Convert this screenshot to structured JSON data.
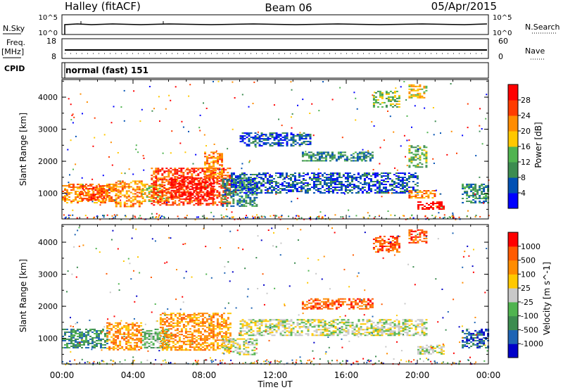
{
  "header": {
    "station": "Halley (fitACF)",
    "beam": "Beam 06",
    "date": "05/Apr/2015"
  },
  "nsky_panel": {
    "left_label": "N.Sky",
    "right_label": "N.Search",
    "left_ticks": [
      "10^5",
      "10^0"
    ],
    "right_ticks": [
      "10^5",
      "10^0"
    ]
  },
  "freq_panel": {
    "left_label_1": "Freq.",
    "left_label_2": "[MHz]",
    "right_label": "Nave",
    "left_ticks": [
      "18",
      "8"
    ],
    "right_ticks": [
      "60",
      "0"
    ]
  },
  "cpid_panel": {
    "label": "CPID",
    "text": "normal (fast) 151"
  },
  "colors": {
    "power": [
      "#0000ff",
      "#0050b4",
      "#3c8c50",
      "#50b450",
      "#ffc800",
      "#ff8c00",
      "#ff3c00",
      "#ff0000"
    ],
    "velocity": [
      "#0000c8",
      "#1e64b4",
      "#3c8c50",
      "#50b450",
      "#c8c8c8",
      "#ffc800",
      "#ff8c00",
      "#ff5a00",
      "#ff0000"
    ],
    "ground_scatter": "#c8c8c8"
  },
  "chart_data": [
    {
      "type": "heatmap",
      "quantity": "Power",
      "xlabel": "",
      "ylabel": "Slant Range [km]",
      "xlim": [
        0,
        24
      ],
      "ylim": [
        200,
        4550
      ],
      "ytick_labels": [
        "1000",
        "2000",
        "3000",
        "4000"
      ],
      "ytick_values": [
        1000,
        2000,
        3000,
        4000
      ],
      "colorbar_label": "Power [dB]",
      "colorbar_ticks": [
        "4",
        "8",
        "12",
        "16",
        "20",
        "24",
        "28"
      ],
      "colorbar_range": [
        0,
        32
      ],
      "regions": [
        {
          "t0": 0.0,
          "t1": 3.0,
          "r0": 700,
          "r1": 1300,
          "level": 5
        },
        {
          "t0": 1.0,
          "t1": 2.5,
          "r0": 800,
          "r1": 1250,
          "level": 6
        },
        {
          "t0": 3.0,
          "t1": 4.5,
          "r0": 600,
          "r1": 1400,
          "level": 5
        },
        {
          "t0": 4.5,
          "t1": 6.0,
          "r0": 750,
          "r1": 1300,
          "level": 4
        },
        {
          "t0": 5.0,
          "t1": 9.5,
          "r0": 650,
          "r1": 1800,
          "level": 6
        },
        {
          "t0": 6.0,
          "t1": 8.5,
          "r0": 800,
          "r1": 1500,
          "level": 7
        },
        {
          "t0": 8.0,
          "t1": 9.0,
          "r0": 1500,
          "r1": 2300,
          "level": 5
        },
        {
          "t0": 9.0,
          "t1": 11.0,
          "r0": 600,
          "r1": 1500,
          "level": 2
        },
        {
          "t0": 9.5,
          "t1": 20.0,
          "r0": 1000,
          "r1": 1650,
          "level": 1
        },
        {
          "t0": 13.5,
          "t1": 17.5,
          "r0": 2000,
          "r1": 2300,
          "level": 2
        },
        {
          "t0": 10.0,
          "t1": 14.0,
          "r0": 2500,
          "r1": 2900,
          "level": 1
        },
        {
          "t0": 17.5,
          "t1": 19.0,
          "r0": 3700,
          "r1": 4200,
          "level": 3
        },
        {
          "t0": 19.5,
          "t1": 20.5,
          "r0": 4000,
          "r1": 4400,
          "level": 4
        },
        {
          "t0": 19.5,
          "t1": 20.5,
          "r0": 1800,
          "r1": 2500,
          "level": 3
        },
        {
          "t0": 20.0,
          "t1": 21.5,
          "r0": 500,
          "r1": 750,
          "level": 7
        },
        {
          "t0": 19.5,
          "t1": 21.0,
          "r0": 850,
          "r1": 1100,
          "level": 5
        },
        {
          "t0": 22.5,
          "t1": 24.0,
          "r0": 700,
          "r1": 1300,
          "level": 2
        }
      ]
    },
    {
      "type": "heatmap",
      "quantity": "Velocity",
      "xlabel": "Time UT",
      "ylabel": "Slant Range [km]",
      "xlim": [
        0,
        24
      ],
      "ylim": [
        200,
        4550
      ],
      "xtick_labels": [
        "00:00",
        "04:00",
        "08:00",
        "12:00",
        "16:00",
        "20:00",
        "00:00"
      ],
      "xtick_values": [
        0,
        4,
        8,
        12,
        16,
        20,
        24
      ],
      "ytick_labels": [
        "1000",
        "2000",
        "3000",
        "4000"
      ],
      "ytick_values": [
        1000,
        2000,
        3000,
        4000
      ],
      "colorbar_label": "Velocity [m s^-1]",
      "colorbar_ticks": [
        "1000",
        "500",
        "100",
        "25",
        "-25",
        "-100",
        "-500",
        "-1000"
      ],
      "regions": [
        {
          "t0": 0.0,
          "t1": 2.5,
          "r0": 700,
          "r1": 1300,
          "level": 2
        },
        {
          "t0": 2.5,
          "t1": 4.5,
          "r0": 650,
          "r1": 1500,
          "level": 6
        },
        {
          "t0": 4.5,
          "t1": 6.0,
          "r0": 700,
          "r1": 1300,
          "level": 3
        },
        {
          "t0": 5.5,
          "t1": 9.5,
          "r0": 650,
          "r1": 1800,
          "level": 6
        },
        {
          "t0": 9.0,
          "t1": 11.0,
          "r0": 500,
          "r1": 1000,
          "level": 4
        },
        {
          "t0": 10.0,
          "t1": 20.5,
          "r0": 1100,
          "r1": 1600,
          "level": 4
        },
        {
          "t0": 13.5,
          "t1": 17.5,
          "r0": 1900,
          "r1": 2250,
          "level": 7
        },
        {
          "t0": 17.5,
          "t1": 19.0,
          "r0": 3700,
          "r1": 4200,
          "level": 7
        },
        {
          "t0": 19.5,
          "t1": 20.5,
          "r0": 4000,
          "r1": 4400,
          "level": 7
        },
        {
          "t0": 20.0,
          "t1": 21.5,
          "r0": 500,
          "r1": 800,
          "level": 4
        },
        {
          "t0": 22.5,
          "t1": 24.0,
          "r0": 700,
          "r1": 1300,
          "level": 1
        }
      ]
    }
  ]
}
